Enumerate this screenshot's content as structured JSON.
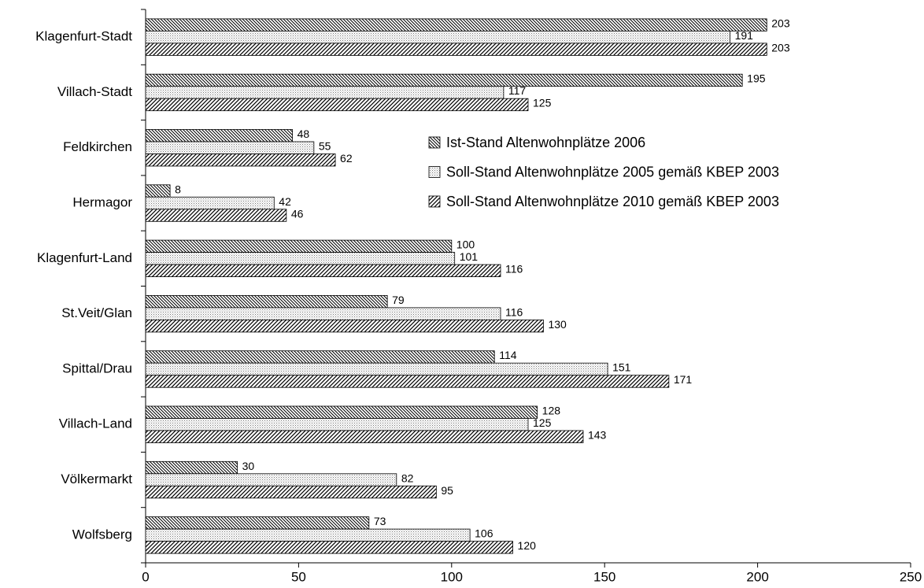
{
  "chart_data": {
    "type": "barh",
    "categories": [
      "Klagenfurt-Stadt",
      "Villach-Stadt",
      "Feldkirchen",
      "Hermagor",
      "Klagenfurt-Land",
      "St.Veit/Glan",
      "Spittal/Drau",
      "Villach-Land",
      "Völkermarkt",
      "Wolfsberg"
    ],
    "series": [
      {
        "name": "Ist-Stand Altenwohnplätze 2006",
        "color": "#000000",
        "pattern": "backslash",
        "values": [
          203,
          195,
          48,
          8,
          100,
          79,
          114,
          128,
          30,
          73
        ]
      },
      {
        "name": "Soll-Stand Altenwohnplätze 2005 gemäß KBEP 2003",
        "color": "#808080",
        "pattern": "dots",
        "values": [
          191,
          117,
          55,
          42,
          101,
          116,
          151,
          125,
          82,
          106
        ]
      },
      {
        "name": "Soll-Stand Altenwohnplätze 2010 gemäß KBEP 2003",
        "color": "#000000",
        "pattern": "slash",
        "values": [
          203,
          125,
          62,
          46,
          116,
          130,
          171,
          143,
          95,
          120
        ]
      }
    ],
    "xlim": [
      0,
      250
    ],
    "xticks": [
      0,
      50,
      100,
      150,
      200,
      250
    ],
    "grid": false,
    "legend": "center-right"
  }
}
